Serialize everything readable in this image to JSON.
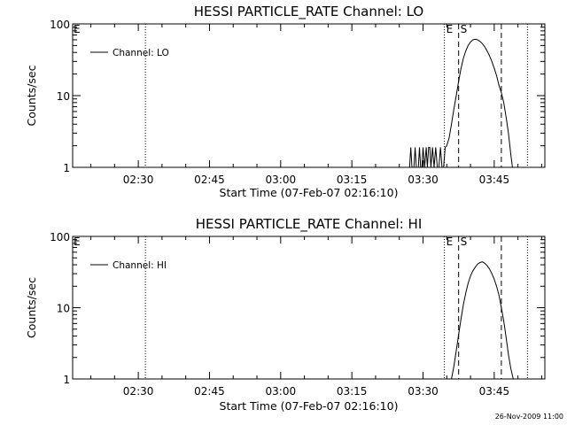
{
  "footer": {
    "timestamp": "26-Nov-2009 11:00"
  },
  "chart_data": [
    {
      "type": "line",
      "title": "HESSI PARTICLE_RATE Channel: LO",
      "xlabel": "Start Time (07-Feb-07 02:16:10)",
      "ylabel": "Counts/sec",
      "yscale": "log",
      "ylim": [
        1,
        100
      ],
      "xlim": [
        "02:16:10",
        "03:55:40"
      ],
      "x_ticks": [
        "02:30",
        "02:45",
        "03:00",
        "03:15",
        "03:30",
        "03:45"
      ],
      "y_ticks": [
        "1",
        "10",
        "100"
      ],
      "legend": {
        "position": "top-left",
        "entries": [
          "Channel: LO"
        ]
      },
      "vlines": [
        {
          "time": "02:31:30",
          "style": "dotted",
          "label": ""
        },
        {
          "time": "03:34:30",
          "style": "dotted",
          "label": "E"
        },
        {
          "time": "03:37:30",
          "style": "dashed",
          "label": "S"
        },
        {
          "time": "03:46:30",
          "style": "dashed",
          "label": ""
        },
        {
          "time": "03:52:00",
          "style": "dotted",
          "label": ""
        }
      ],
      "corner_label": "E",
      "series": [
        {
          "x": [
            "03:27:10",
            "03:27:25",
            "03:27:40",
            "03:28:05",
            "03:28:20",
            "03:28:35",
            "03:29:00",
            "03:29:15",
            "03:29:30",
            "03:29:45",
            "03:30:00",
            "03:30:20",
            "03:30:40",
            "03:30:55",
            "03:31:10",
            "03:31:25",
            "03:31:40",
            "03:32:00",
            "03:32:20",
            "03:32:40",
            "03:33:00",
            "03:33:20",
            "03:33:40",
            "03:34:00",
            "03:34:20",
            "03:34:40",
            "03:35:00",
            "03:35:30",
            "03:36:00",
            "03:36:30",
            "03:37:00",
            "03:37:30",
            "03:38:00",
            "03:38:30",
            "03:39:00",
            "03:39:30",
            "03:40:00",
            "03:40:30",
            "03:41:00",
            "03:41:30",
            "03:42:00",
            "03:42:30",
            "03:43:00",
            "03:43:30",
            "03:44:00",
            "03:44:30",
            "03:45:00",
            "03:45:30",
            "03:46:00",
            "03:46:30",
            "03:47:00",
            "03:47:30",
            "03:48:00",
            "03:48:30",
            "03:48:50"
          ],
          "y": [
            1,
            1.9,
            1,
            1,
            1.9,
            1,
            1,
            1.9,
            1,
            1,
            1.9,
            1,
            1.9,
            1,
            1.9,
            1.9,
            1,
            1.9,
            1,
            1.9,
            1,
            1,
            1.9,
            1,
            1,
            1.9,
            2,
            2.6,
            4,
            6.5,
            10,
            16,
            24,
            33,
            42,
            50,
            56,
            60,
            61,
            60,
            57,
            53,
            48,
            42,
            36,
            30,
            24,
            19,
            14,
            11,
            8,
            5,
            3,
            1.5,
            1
          ]
        }
      ]
    },
    {
      "type": "line",
      "title": "HESSI PARTICLE_RATE Channel: HI",
      "xlabel": "Start Time (07-Feb-07 02:16:10)",
      "ylabel": "Counts/sec",
      "yscale": "log",
      "ylim": [
        1,
        100
      ],
      "xlim": [
        "02:16:10",
        "03:55:40"
      ],
      "x_ticks": [
        "02:30",
        "02:45",
        "03:00",
        "03:15",
        "03:30",
        "03:45"
      ],
      "y_ticks": [
        "1",
        "10",
        "100"
      ],
      "legend": {
        "position": "top-left",
        "entries": [
          "Channel: HI"
        ]
      },
      "vlines": [
        {
          "time": "02:31:30",
          "style": "dotted",
          "label": ""
        },
        {
          "time": "03:34:30",
          "style": "dotted",
          "label": "E"
        },
        {
          "time": "03:37:30",
          "style": "dashed",
          "label": "S"
        },
        {
          "time": "03:46:30",
          "style": "dashed",
          "label": ""
        },
        {
          "time": "03:52:00",
          "style": "dotted",
          "label": ""
        }
      ],
      "corner_label": "E",
      "series": [
        {
          "x": [
            "03:36:00",
            "03:36:30",
            "03:37:00",
            "03:37:30",
            "03:38:00",
            "03:38:30",
            "03:39:00",
            "03:39:30",
            "03:40:00",
            "03:40:30",
            "03:41:00",
            "03:41:30",
            "03:42:00",
            "03:42:30",
            "03:43:00",
            "03:43:30",
            "03:44:00",
            "03:44:30",
            "03:45:00",
            "03:45:30",
            "03:46:00",
            "03:46:30",
            "03:47:00",
            "03:47:30",
            "03:48:00",
            "03:48:30",
            "03:49:00"
          ],
          "y": [
            1,
            1.5,
            2.5,
            4.2,
            7,
            11,
            16,
            22,
            28,
            33,
            37,
            41,
            43,
            44,
            42,
            39,
            35,
            30,
            25,
            20,
            15,
            10,
            6.5,
            3.8,
            2.2,
            1.4,
            1
          ]
        }
      ]
    }
  ]
}
